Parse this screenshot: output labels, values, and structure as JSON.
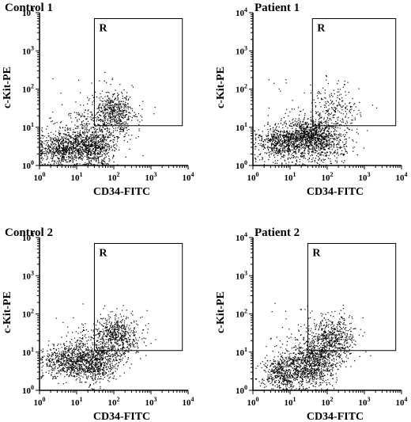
{
  "chart_data": [
    {
      "type": "scatter",
      "title": "Control 1",
      "xlabel": "CD34-FITC",
      "ylabel": "c-Kit-PE",
      "xscale": "log",
      "yscale": "log",
      "xlim": [
        1,
        10000
      ],
      "ylim": [
        1,
        10000
      ],
      "x_ticks": [
        "10^0",
        "10^1",
        "10^2",
        "10^3",
        "10^4"
      ],
      "y_ticks": [
        "10^0",
        "10^1",
        "10^2",
        "10^3",
        "10^4"
      ],
      "gate": {
        "label": "R",
        "x_range": [
          30,
          7000
        ],
        "y_range": [
          11,
          7000
        ]
      },
      "clusters": [
        {
          "center": [
            4,
            3
          ],
          "spread": [
            0.35,
            0.22
          ],
          "count": 650
        },
        {
          "center": [
            25,
            3
          ],
          "spread": [
            0.28,
            0.25
          ],
          "count": 550
        },
        {
          "center": [
            100,
            25
          ],
          "spread": [
            0.28,
            0.28
          ],
          "count": 500
        },
        {
          "center": [
            30,
            8
          ],
          "spread": [
            0.45,
            0.35
          ],
          "count": 350
        }
      ],
      "grid": false
    },
    {
      "type": "scatter",
      "title": "Patient 1",
      "xlabel": "CD34-FITC",
      "ylabel": "c-Kit-PE",
      "xscale": "log",
      "yscale": "log",
      "xlim": [
        1,
        10000
      ],
      "ylim": [
        1,
        10000
      ],
      "x_ticks": [
        "10^0",
        "10^1",
        "10^2",
        "10^3",
        "10^4"
      ],
      "y_ticks": [
        "10^0",
        "10^1",
        "10^2",
        "10^3",
        "10^4"
      ],
      "gate": {
        "label": "R",
        "x_range": [
          40,
          7000
        ],
        "y_range": [
          11,
          7000
        ]
      },
      "clusters": [
        {
          "center": [
            6,
            4
          ],
          "spread": [
            0.35,
            0.25
          ],
          "count": 650
        },
        {
          "center": [
            30,
            6
          ],
          "spread": [
            0.3,
            0.25
          ],
          "count": 750
        },
        {
          "center": [
            90,
            4
          ],
          "spread": [
            0.35,
            0.25
          ],
          "count": 350
        },
        {
          "center": [
            150,
            25
          ],
          "spread": [
            0.35,
            0.35
          ],
          "count": 250
        }
      ],
      "grid": false
    },
    {
      "type": "scatter",
      "title": "Control 2",
      "xlabel": "CD34-FITC",
      "ylabel": "c-Kit-PE",
      "xscale": "log",
      "yscale": "log",
      "xlim": [
        1,
        10000
      ],
      "ylim": [
        1,
        10000
      ],
      "x_ticks": [
        "10^0",
        "10^1",
        "10^2",
        "10^3",
        "10^4"
      ],
      "y_ticks": [
        "10^0",
        "10^1",
        "10^2",
        "10^3",
        "10^4"
      ],
      "gate": {
        "label": "R",
        "x_range": [
          30,
          7000
        ],
        "y_range": [
          11,
          7000
        ]
      },
      "clusters": [
        {
          "center": [
            6,
            6
          ],
          "spread": [
            0.35,
            0.22
          ],
          "count": 650
        },
        {
          "center": [
            30,
            5
          ],
          "spread": [
            0.28,
            0.25
          ],
          "count": 450
        },
        {
          "center": [
            120,
            25
          ],
          "spread": [
            0.3,
            0.3
          ],
          "count": 550
        },
        {
          "center": [
            40,
            12
          ],
          "spread": [
            0.45,
            0.35
          ],
          "count": 300
        }
      ],
      "grid": false
    },
    {
      "type": "scatter",
      "title": "Patient 2",
      "xlabel": "CD34-FITC",
      "ylabel": "c-Kit-PE",
      "xscale": "log",
      "yscale": "log",
      "xlim": [
        1,
        10000
      ],
      "ylim": [
        1,
        10000
      ],
      "x_ticks": [
        "10^0",
        "10^1",
        "10^2",
        "10^3",
        "10^4"
      ],
      "y_ticks": [
        "10^0",
        "10^1",
        "10^2",
        "10^3",
        "10^4"
      ],
      "gate": {
        "label": "R",
        "x_range": [
          30,
          7000
        ],
        "y_range": [
          11,
          7000
        ]
      },
      "clusters": [
        {
          "center": [
            7,
            3
          ],
          "spread": [
            0.3,
            0.22
          ],
          "count": 550
        },
        {
          "center": [
            40,
            5
          ],
          "spread": [
            0.3,
            0.28
          ],
          "count": 650
        },
        {
          "center": [
            150,
            25
          ],
          "spread": [
            0.3,
            0.3
          ],
          "count": 450
        },
        {
          "center": [
            50,
            12
          ],
          "spread": [
            0.4,
            0.35
          ],
          "count": 300
        }
      ],
      "grid": false
    }
  ],
  "colors": {
    "ink": "#000000",
    "background": "#ffffff"
  }
}
